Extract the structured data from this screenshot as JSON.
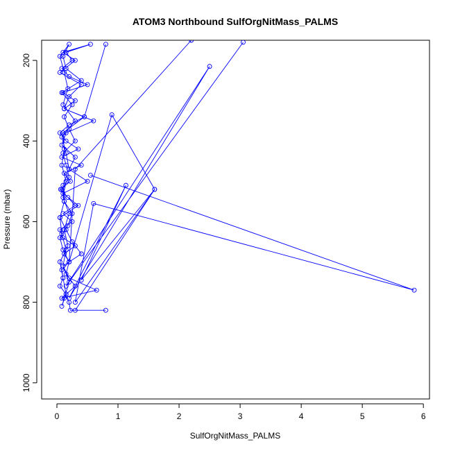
{
  "chart_data": {
    "type": "line",
    "title": "ATOM3 Northbound SulfOrgNitMass_PALMS",
    "xlabel": "SulfOrgNitMass_PALMS",
    "ylabel": "Pressure (mbar)",
    "xlim": [
      -0.25,
      6.1
    ],
    "ylim": [
      1040,
      150
    ],
    "y_reversed": true,
    "x_ticks": [
      0,
      1,
      2,
      3,
      4,
      5,
      6
    ],
    "x_tick_labels": [
      "0",
      "1",
      "2",
      "3",
      "4",
      "5",
      "6"
    ],
    "y_ticks": [
      200,
      400,
      600,
      800,
      1000
    ],
    "y_tick_labels": [
      "200",
      "400",
      "600",
      "800",
      "1000"
    ],
    "grid": false,
    "marker": "open-circle",
    "series": [
      {
        "color": "#0000ff",
        "x": [
          0.8,
          0.22,
          0.2,
          0.15,
          0.05,
          0.1,
          0.08,
          0.2,
          0.12,
          0.3,
          0.1,
          0.05,
          0.25,
          0.1,
          0.3,
          0.18,
          0.06,
          0.22,
          0.12,
          0.4,
          0.08,
          0.35,
          0.15,
          0.05,
          0.2,
          0.45,
          0.12,
          0.3,
          0.1,
          0.5,
          0.2,
          0.08,
          0.25,
          0.15,
          0.55,
          0.1,
          0.3,
          0.05,
          0.4,
          0.2,
          0.12,
          0.6,
          0.15,
          0.08,
          0.3,
          0.2,
          0.5,
          0.1,
          0.35,
          0.05,
          0.15,
          0.25,
          0.4,
          0.1,
          0.2,
          0.65,
          0.08,
          0.3,
          0.15,
          0.2,
          0.1,
          0.05,
          0.18,
          0.25,
          0.12,
          0.08,
          0.2,
          0.15,
          0.1,
          0.3,
          0.2,
          0.12,
          0.25,
          0.08,
          0.4,
          0.15,
          0.1,
          0.2,
          0.05,
          0.12,
          0.18,
          0.1,
          0.3,
          0.08,
          0.15,
          0.2,
          0.1,
          0.12,
          0.05,
          0.08,
          0.15,
          0.1,
          0.2,
          0.12,
          0.08,
          0.15,
          0.1,
          0.05,
          0.18,
          0.12,
          0.2,
          0.1,
          0.15,
          0.08,
          0.12,
          0.1,
          0.45,
          0.8
        ],
        "y": [
          820,
          820,
          800,
          780,
          760,
          740,
          720,
          700,
          680,
          660,
          640,
          620,
          600,
          580,
          560,
          540,
          520,
          500,
          480,
          460,
          440,
          420,
          400,
          380,
          360,
          340,
          320,
          300,
          280,
          260,
          240,
          220,
          200,
          180,
          160,
          180,
          200,
          230,
          260,
          290,
          320,
          350,
          380,
          410,
          440,
          470,
          500,
          530,
          560,
          590,
          620,
          650,
          680,
          710,
          740,
          770,
          790,
          760,
          730,
          700,
          670,
          640,
          610,
          580,
          550,
          520,
          490,
          460,
          430,
          400,
          370,
          340,
          310,
          280,
          250,
          220,
          190,
          160,
          190,
          230,
          270,
          310,
          350,
          390,
          430,
          470,
          510,
          550,
          590,
          630,
          670,
          710,
          750,
          790,
          810,
          780,
          740,
          700,
          660,
          620,
          580,
          540,
          500,
          460,
          420,
          380,
          340,
          160
        ]
      },
      {
        "color": "#0000ff",
        "x": [
          0.55,
          5.85,
          0.6,
          0.3,
          1.6,
          0.4,
          1.13,
          0.2,
          2.5,
          0.15,
          3.05
        ],
        "y": [
          485,
          770,
          555,
          800,
          520,
          745,
          510,
          790,
          215,
          760,
          155
        ]
      },
      {
        "color": "#0000ff",
        "x": [
          0.3,
          1.6,
          0.9,
          0.2,
          0.3,
          2.2
        ],
        "y": [
          820,
          520,
          335,
          700,
          470,
          150
        ]
      }
    ]
  }
}
